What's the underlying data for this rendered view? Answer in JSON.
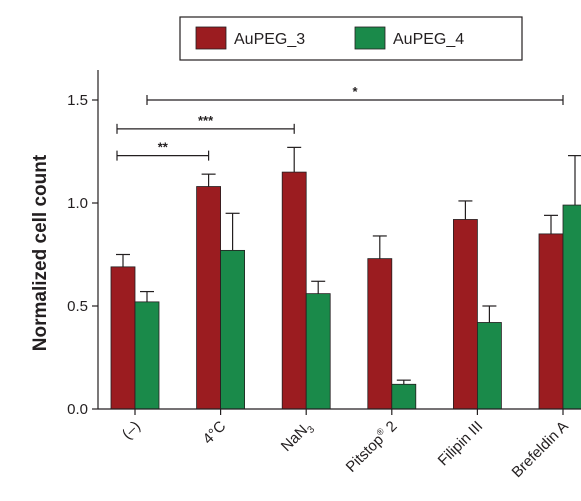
{
  "chart_data": {
    "type": "bar",
    "title": "",
    "xlabel": "",
    "ylabel": "Normalized cell count",
    "ylim": [
      0,
      1.6
    ],
    "yticks": [
      "0.0",
      "0.5",
      "1.0",
      "1.5"
    ],
    "legend_position": "top",
    "categories": [
      "(–)",
      "4°C",
      "NaN3",
      "Pitstop® 2",
      "Filipin III",
      "Brefeldin A"
    ],
    "category_labels": [
      {
        "main": "(–)"
      },
      {
        "main": "4°C"
      },
      {
        "main": "NaN",
        "sub": "3"
      },
      {
        "main": "Pitstop",
        "sup": "®",
        "tail": " 2"
      },
      {
        "main": "Filipin III"
      },
      {
        "main": "Brefeldin A"
      }
    ],
    "series": [
      {
        "name": "AuPEG_3",
        "color": "#9b1c20",
        "values": [
          0.69,
          1.08,
          1.15,
          0.73,
          0.92,
          0.85
        ],
        "errors": [
          0.06,
          0.06,
          0.12,
          0.11,
          0.09,
          0.09
        ]
      },
      {
        "name": "AuPEG_4",
        "color": "#1a8a4a",
        "values": [
          0.52,
          0.77,
          0.56,
          0.12,
          0.42,
          0.99
        ],
        "errors": [
          0.05,
          0.18,
          0.06,
          0.02,
          0.08,
          0.24
        ]
      }
    ],
    "significance": [
      {
        "from": 0,
        "to": 1,
        "label": "**",
        "y": 1.23
      },
      {
        "from": 0,
        "to": 2,
        "label": "***",
        "y": 1.36
      },
      {
        "from": 0,
        "to": 5,
        "label": "*",
        "y": 1.5
      }
    ]
  }
}
